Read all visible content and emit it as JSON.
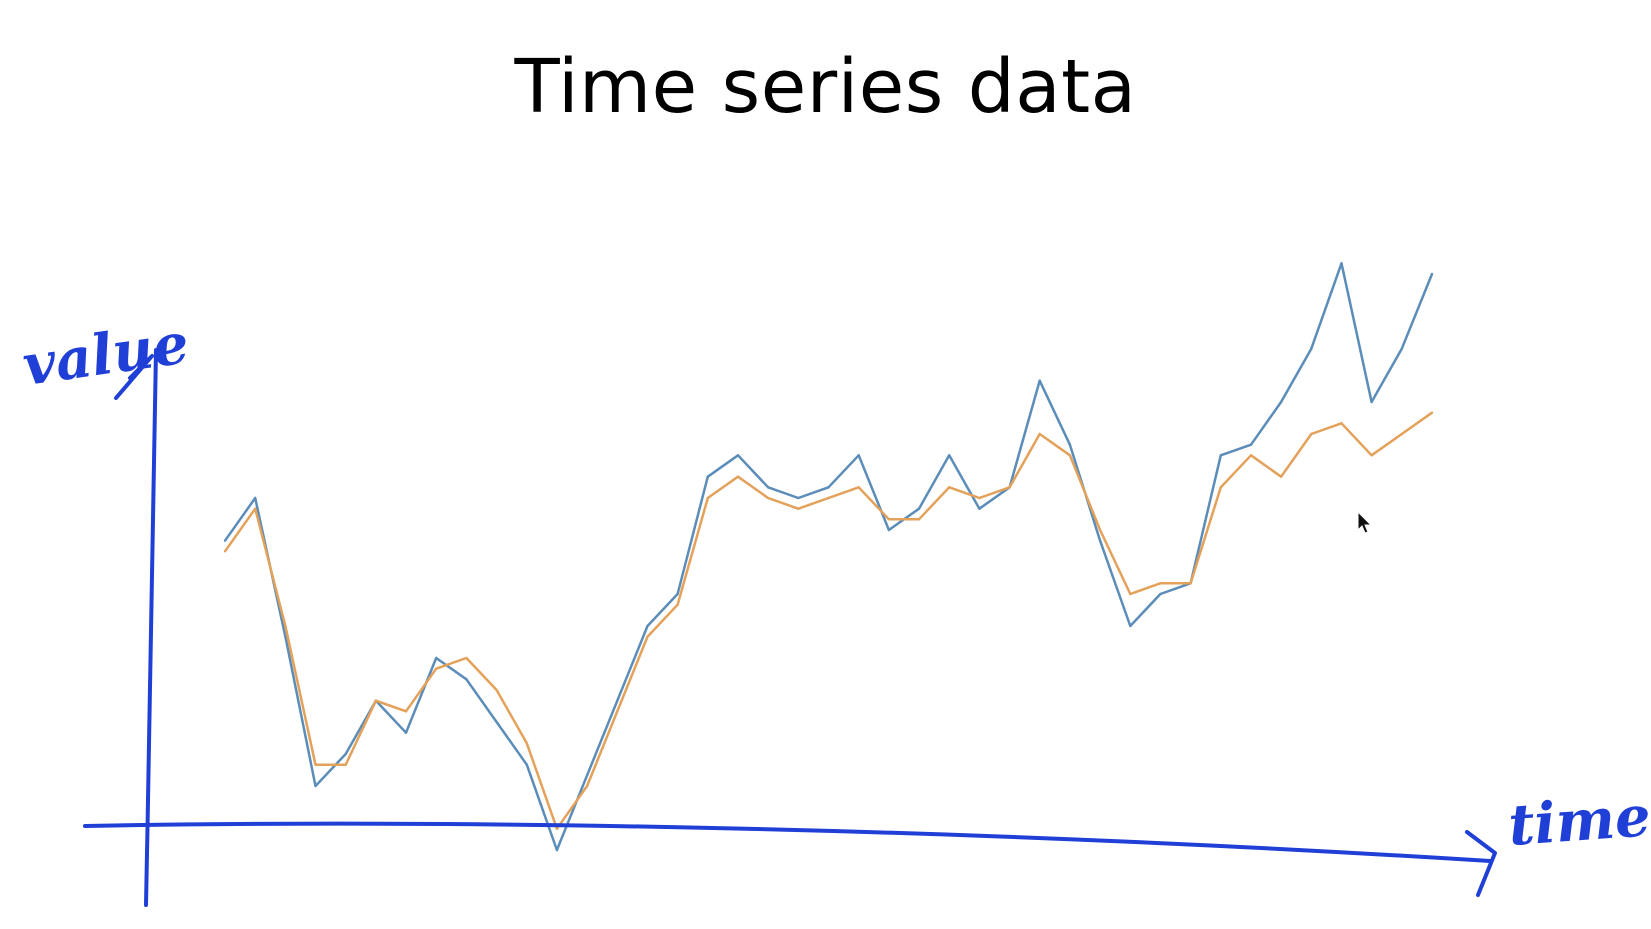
{
  "title": "Time series data",
  "colors": {
    "axis_ink": "#1f3fd6",
    "series_blue": "#5b8db8",
    "series_orange": "#e3a15a",
    "text": "#000000",
    "background": "#ffffff"
  },
  "chart_data": {
    "type": "line",
    "title": "Time series data",
    "xlabel": "time",
    "ylabel": "value",
    "xlim": [
      0,
      40
    ],
    "ylim": [
      0,
      60
    ],
    "grid": false,
    "legend": "none",
    "axis_style": "hand-drawn",
    "x": [
      0,
      1,
      2,
      3,
      4,
      5,
      6,
      7,
      8,
      9,
      10,
      11,
      12,
      13,
      14,
      15,
      16,
      17,
      18,
      19,
      20,
      21,
      22,
      23,
      24,
      25,
      26,
      27,
      28,
      29,
      30,
      31,
      32,
      33,
      34,
      35,
      36,
      37,
      38,
      39,
      40
    ],
    "series": [
      {
        "color": "#5b8db8",
        "values": [
          29,
          33,
          20,
          6,
          9,
          14,
          11,
          18,
          16,
          12,
          8,
          0,
          7,
          14,
          21,
          24,
          35,
          37,
          34,
          33,
          34,
          37,
          30,
          32,
          37,
          32,
          34,
          44,
          38,
          29,
          21,
          24,
          25,
          37,
          38,
          42,
          47,
          55,
          42,
          47,
          54
        ]
      },
      {
        "color": "#e3a15a",
        "values": [
          28,
          32,
          21,
          8,
          8,
          14,
          13,
          17,
          18,
          15,
          10,
          2,
          6,
          13,
          20,
          23,
          33,
          35,
          33,
          32,
          33,
          34,
          31,
          31,
          34,
          33,
          34,
          39,
          37,
          30,
          24,
          25,
          25,
          34,
          37,
          35,
          39,
          40,
          37,
          39,
          41
        ]
      }
    ]
  },
  "icons": {
    "cursor": "mouse-pointer-icon"
  }
}
